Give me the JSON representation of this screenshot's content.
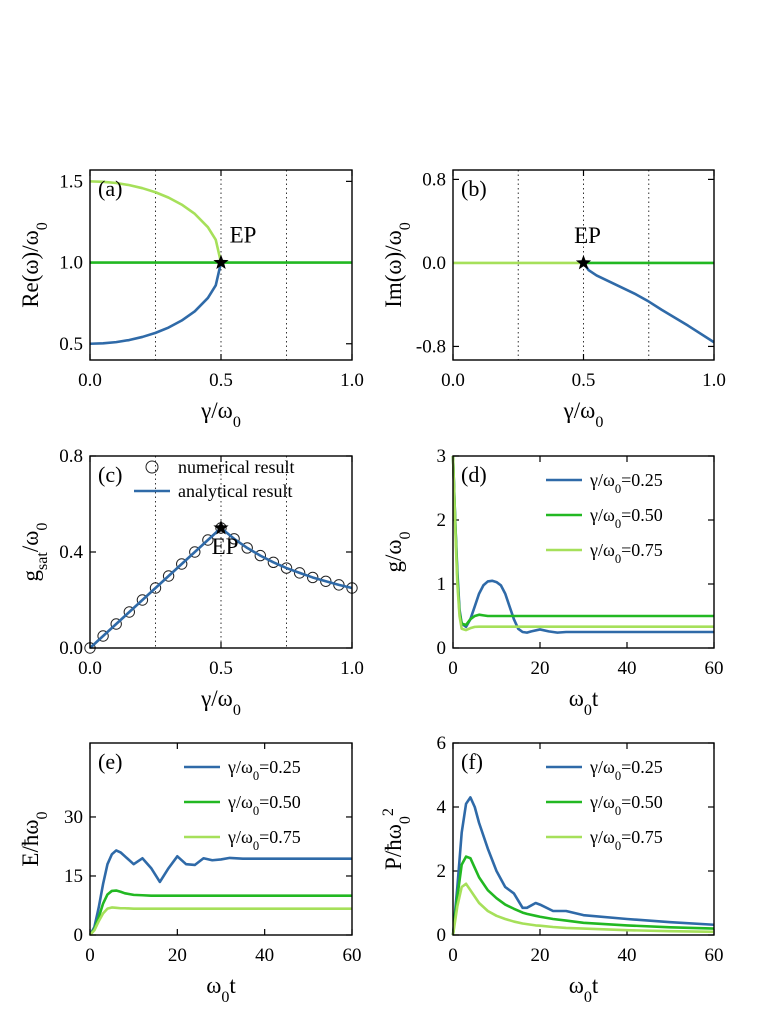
{
  "chart_data": [
    {
      "type": "line",
      "panel_label": "(a)",
      "xlabel": [
        {
          "text": "γ/ω"
        },
        {
          "text": "0",
          "sub": true
        }
      ],
      "ylabel": [
        {
          "text": "Re(ω)/ω"
        },
        {
          "text": "0",
          "sub": true
        }
      ],
      "xlim": [
        0,
        1
      ],
      "xticks": [
        {
          "value": 0,
          "label": "0.0"
        },
        {
          "value": 0.5,
          "label": "0.5"
        },
        {
          "value": 1,
          "label": "1.0"
        }
      ],
      "ylim": [
        0.4,
        1.57
      ],
      "yticks": [
        {
          "value": 0.5,
          "label": "0.5"
        },
        {
          "value": 1,
          "label": "1.0"
        },
        {
          "value": 1.5,
          "label": "1.5"
        }
      ],
      "vlines": [
        0.25,
        0.5,
        0.75
      ],
      "series": [
        {
          "color": "#a6e05a",
          "x": [
            0,
            0.05,
            0.1,
            0.15,
            0.2,
            0.25,
            0.3,
            0.35,
            0.4,
            0.45,
            0.48,
            0.5
          ],
          "values": [
            1.5,
            1.4975,
            1.49,
            1.477,
            1.458,
            1.433,
            1.4,
            1.357,
            1.3,
            1.218,
            1.14,
            1.0
          ]
        },
        {
          "color": "#2f6aa8",
          "x": [
            0,
            0.05,
            0.1,
            0.15,
            0.2,
            0.25,
            0.3,
            0.35,
            0.4,
            0.45,
            0.48,
            0.5
          ],
          "values": [
            0.5,
            0.5025,
            0.51,
            0.523,
            0.542,
            0.567,
            0.6,
            0.643,
            0.7,
            0.782,
            0.86,
            1.0
          ]
        },
        {
          "color": "#22b822",
          "x": [
            0,
            1
          ],
          "values": [
            1,
            1
          ]
        }
      ],
      "markers": [
        {
          "x": 0.5,
          "y": 1.0,
          "label": "EP"
        }
      ]
    },
    {
      "type": "line",
      "panel_label": "(b)",
      "xlabel": [
        {
          "text": "γ/ω"
        },
        {
          "text": "0",
          "sub": true
        }
      ],
      "ylabel": [
        {
          "text": "Im(ω)/ω"
        },
        {
          "text": "0",
          "sub": true
        }
      ],
      "xlim": [
        0,
        1
      ],
      "xticks": [
        {
          "value": 0,
          "label": "0.0"
        },
        {
          "value": 0.5,
          "label": "0.5"
        },
        {
          "value": 1,
          "label": "1.0"
        }
      ],
      "ylim": [
        -0.93,
        0.89
      ],
      "yticks": [
        -0.8,
        {
          "value": 0,
          "label": "0.0"
        },
        0.8
      ],
      "vlines": [
        0.25,
        0.5,
        0.75
      ],
      "series": [
        {
          "color": "#a6e05a",
          "x": [
            0,
            0.5
          ],
          "values": [
            0,
            0
          ]
        },
        {
          "color": "#22b822",
          "x": [
            0.5,
            1
          ],
          "values": [
            0,
            0
          ]
        },
        {
          "color": "#2f6aa8",
          "x": [
            0.5,
            0.52,
            0.55,
            0.6,
            0.65,
            0.7,
            0.75,
            0.8,
            0.9,
            1.0
          ],
          "values": [
            0,
            -0.07,
            -0.12,
            -0.18,
            -0.24,
            -0.3,
            -0.37,
            -0.45,
            -0.6,
            -0.76
          ]
        }
      ],
      "markers": [
        {
          "x": 0.5,
          "y": 0,
          "label": "EP"
        }
      ]
    },
    {
      "type": "line",
      "panel_label": "(c)",
      "legend": "upper left",
      "xlabel": [
        {
          "text": "γ/ω"
        },
        {
          "text": "0",
          "sub": true
        }
      ],
      "ylabel": [
        {
          "text": "g"
        },
        {
          "text": "sat",
          "sub": true
        },
        {
          "text": "/ω"
        },
        {
          "text": "0",
          "sub": true
        }
      ],
      "xlim": [
        0,
        1
      ],
      "xticks": [
        {
          "value": 0,
          "label": "0.0"
        },
        {
          "value": 0.5,
          "label": "0.5"
        },
        {
          "value": 1,
          "label": "1.0"
        }
      ],
      "ylim": [
        0,
        0.8
      ],
      "yticks": [
        {
          "value": 0,
          "label": "0.0"
        },
        0.4,
        0.8
      ],
      "vlines": [
        0.25,
        0.5,
        0.75
      ],
      "x": [
        0,
        0.05,
        0.1,
        0.15,
        0.2,
        0.25,
        0.3,
        0.35,
        0.4,
        0.45,
        0.5,
        0.55,
        0.6,
        0.65,
        0.7,
        0.75,
        0.8,
        0.85,
        0.9,
        0.95,
        1.0
      ],
      "series": [
        {
          "name": [
            {
              "text": "numerical result"
            }
          ],
          "marker": "circle",
          "color": "#222222",
          "values": [
            0,
            0.05,
            0.1,
            0.15,
            0.2,
            0.25,
            0.3,
            0.35,
            0.4,
            0.45,
            0.5,
            0.455,
            0.417,
            0.385,
            0.357,
            0.333,
            0.313,
            0.294,
            0.278,
            0.263,
            0.25
          ]
        },
        {
          "name": [
            {
              "text": "analytical result"
            }
          ],
          "color": "#2f6aa8",
          "values": [
            0,
            0.05,
            0.1,
            0.15,
            0.2,
            0.25,
            0.3,
            0.35,
            0.4,
            0.45,
            0.5,
            0.455,
            0.417,
            0.385,
            0.357,
            0.333,
            0.313,
            0.294,
            0.278,
            0.263,
            0.25
          ]
        }
      ],
      "markers": [
        {
          "x": 0.5,
          "y": 0.5,
          "label": "EP"
        }
      ]
    },
    {
      "type": "line",
      "panel_label": "(d)",
      "legend": "upper right",
      "xlabel": [
        {
          "text": "ω"
        },
        {
          "text": "0",
          "sub": true
        },
        {
          "text": "t"
        }
      ],
      "ylabel": [
        {
          "text": "g/ω"
        },
        {
          "text": "0",
          "sub": true
        }
      ],
      "xlim": [
        0,
        60
      ],
      "xticks": [
        0,
        20,
        40,
        60
      ],
      "ylim": [
        0,
        3
      ],
      "yticks": [
        0,
        1,
        2,
        3
      ],
      "x": [
        0,
        0.5,
        1,
        1.5,
        2,
        3,
        4,
        5,
        6,
        7,
        8,
        9,
        10,
        11,
        12,
        13,
        14,
        15,
        16,
        17,
        18,
        20,
        22,
        24,
        26,
        30,
        35,
        40,
        50,
        60
      ],
      "series": [
        {
          "name": [
            {
              "text": "γ/ω"
            },
            {
              "text": "0",
              "sub": true
            },
            {
              "text": "=0.25"
            }
          ],
          "color": "#2f6aa8",
          "values": [
            3,
            2.0,
            1.2,
            0.6,
            0.38,
            0.33,
            0.45,
            0.65,
            0.85,
            0.98,
            1.04,
            1.05,
            1.03,
            0.98,
            0.85,
            0.65,
            0.45,
            0.3,
            0.25,
            0.24,
            0.26,
            0.29,
            0.26,
            0.24,
            0.25,
            0.25,
            0.25,
            0.25,
            0.25,
            0.25
          ]
        },
        {
          "name": [
            {
              "text": "γ/ω"
            },
            {
              "text": "0",
              "sub": true
            },
            {
              "text": "=0.50"
            }
          ],
          "color": "#22b822",
          "values": [
            3,
            2.0,
            1.1,
            0.55,
            0.38,
            0.36,
            0.45,
            0.5,
            0.52,
            0.51,
            0.5,
            0.5,
            0.5,
            0.5,
            0.5,
            0.5,
            0.5,
            0.5,
            0.5,
            0.5,
            0.5,
            0.5,
            0.5,
            0.5,
            0.5,
            0.5,
            0.5,
            0.5,
            0.5,
            0.5
          ]
        },
        {
          "name": [
            {
              "text": "γ/ω"
            },
            {
              "text": "0",
              "sub": true
            },
            {
              "text": "=0.75"
            }
          ],
          "color": "#a6e05a",
          "values": [
            3,
            1.9,
            1.0,
            0.5,
            0.3,
            0.28,
            0.31,
            0.33,
            0.333,
            0.333,
            0.333,
            0.333,
            0.333,
            0.333,
            0.333,
            0.333,
            0.333,
            0.333,
            0.333,
            0.333,
            0.333,
            0.333,
            0.333,
            0.333,
            0.333,
            0.333,
            0.333,
            0.333,
            0.333,
            0.333
          ]
        }
      ]
    },
    {
      "type": "line",
      "panel_label": "(e)",
      "legend": "upper right",
      "xlabel": [
        {
          "text": "ω"
        },
        {
          "text": "0",
          "sub": true
        },
        {
          "text": "t"
        }
      ],
      "ylabel": [
        {
          "text": "E/ħω"
        },
        {
          "text": "0",
          "sub": true
        }
      ],
      "xlim": [
        0,
        60
      ],
      "xticks": [
        0,
        20,
        40,
        60
      ],
      "ylim": [
        0,
        48.8
      ],
      "yticks": [
        0,
        15,
        30
      ],
      "x": [
        0,
        1,
        2,
        3,
        4,
        5,
        6,
        7,
        8,
        10,
        12,
        14,
        16,
        18,
        20,
        22,
        24,
        26,
        28,
        30,
        32,
        35,
        40,
        50,
        60
      ],
      "series": [
        {
          "name": [
            {
              "text": "γ/ω"
            },
            {
              "text": "0",
              "sub": true
            },
            {
              "text": "=0.25"
            }
          ],
          "color": "#2f6aa8",
          "values": [
            0,
            2,
            7,
            13,
            18,
            20.5,
            21.5,
            21,
            20,
            18,
            19.5,
            17,
            13.5,
            17,
            20,
            18,
            17.8,
            19.5,
            19,
            19.2,
            19.6,
            19.4,
            19.4,
            19.4,
            19.4
          ]
        },
        {
          "name": [
            {
              "text": "γ/ω"
            },
            {
              "text": "0",
              "sub": true
            },
            {
              "text": "=0.50"
            }
          ],
          "color": "#22b822",
          "values": [
            0,
            1.5,
            4.5,
            8,
            10.3,
            11.2,
            11.3,
            11,
            10.6,
            10.2,
            10.1,
            10,
            10,
            10,
            10,
            10,
            10,
            10,
            10,
            10,
            10,
            10,
            10,
            10,
            10
          ]
        },
        {
          "name": [
            {
              "text": "γ/ω"
            },
            {
              "text": "0",
              "sub": true
            },
            {
              "text": "=0.75"
            }
          ],
          "color": "#a6e05a",
          "values": [
            0,
            1.2,
            3.5,
            5.5,
            6.7,
            7,
            6.9,
            6.8,
            6.8,
            6.7,
            6.7,
            6.7,
            6.7,
            6.7,
            6.7,
            6.7,
            6.7,
            6.7,
            6.7,
            6.7,
            6.7,
            6.7,
            6.7,
            6.7,
            6.7
          ]
        }
      ]
    },
    {
      "type": "line",
      "panel_label": "(f)",
      "legend": "upper right",
      "xlabel": [
        {
          "text": "ω"
        },
        {
          "text": "0",
          "sub": true
        },
        {
          "text": "t"
        }
      ],
      "ylabel": [
        {
          "text": "P/ħω"
        },
        {
          "text": "0",
          "sub": true
        },
        {
          "text": "2",
          "sup": true
        }
      ],
      "xlim": [
        0,
        60
      ],
      "xticks": [
        0,
        20,
        40,
        60
      ],
      "ylim": [
        0,
        6
      ],
      "yticks": [
        0,
        2,
        4,
        6
      ],
      "x": [
        0,
        1,
        2,
        3,
        4,
        5,
        6,
        8,
        10,
        12,
        14,
        16,
        17,
        19,
        20,
        23,
        26,
        30,
        40,
        50,
        60
      ],
      "series": [
        {
          "name": [
            {
              "text": "γ/ω"
            },
            {
              "text": "0",
              "sub": true
            },
            {
              "text": "=0.25"
            }
          ],
          "color": "#2f6aa8",
          "values": [
            0,
            1.5,
            3.2,
            4.1,
            4.3,
            4.0,
            3.5,
            2.7,
            2.0,
            1.5,
            1.3,
            0.85,
            0.85,
            1.0,
            0.95,
            0.75,
            0.75,
            0.62,
            0.5,
            0.4,
            0.32
          ]
        },
        {
          "name": [
            {
              "text": "γ/ω"
            },
            {
              "text": "0",
              "sub": true
            },
            {
              "text": "=0.50"
            }
          ],
          "color": "#22b822",
          "values": [
            0,
            1.2,
            2.2,
            2.45,
            2.4,
            2.1,
            1.8,
            1.4,
            1.15,
            0.95,
            0.82,
            0.7,
            0.66,
            0.6,
            0.57,
            0.5,
            0.45,
            0.38,
            0.3,
            0.24,
            0.2
          ]
        },
        {
          "name": [
            {
              "text": "γ/ω"
            },
            {
              "text": "0",
              "sub": true
            },
            {
              "text": "=0.75"
            }
          ],
          "color": "#a6e05a",
          "values": [
            0,
            0.9,
            1.5,
            1.6,
            1.4,
            1.2,
            1.0,
            0.75,
            0.6,
            0.5,
            0.42,
            0.36,
            0.34,
            0.3,
            0.29,
            0.25,
            0.22,
            0.2,
            0.15,
            0.12,
            0.1
          ]
        }
      ]
    }
  ]
}
